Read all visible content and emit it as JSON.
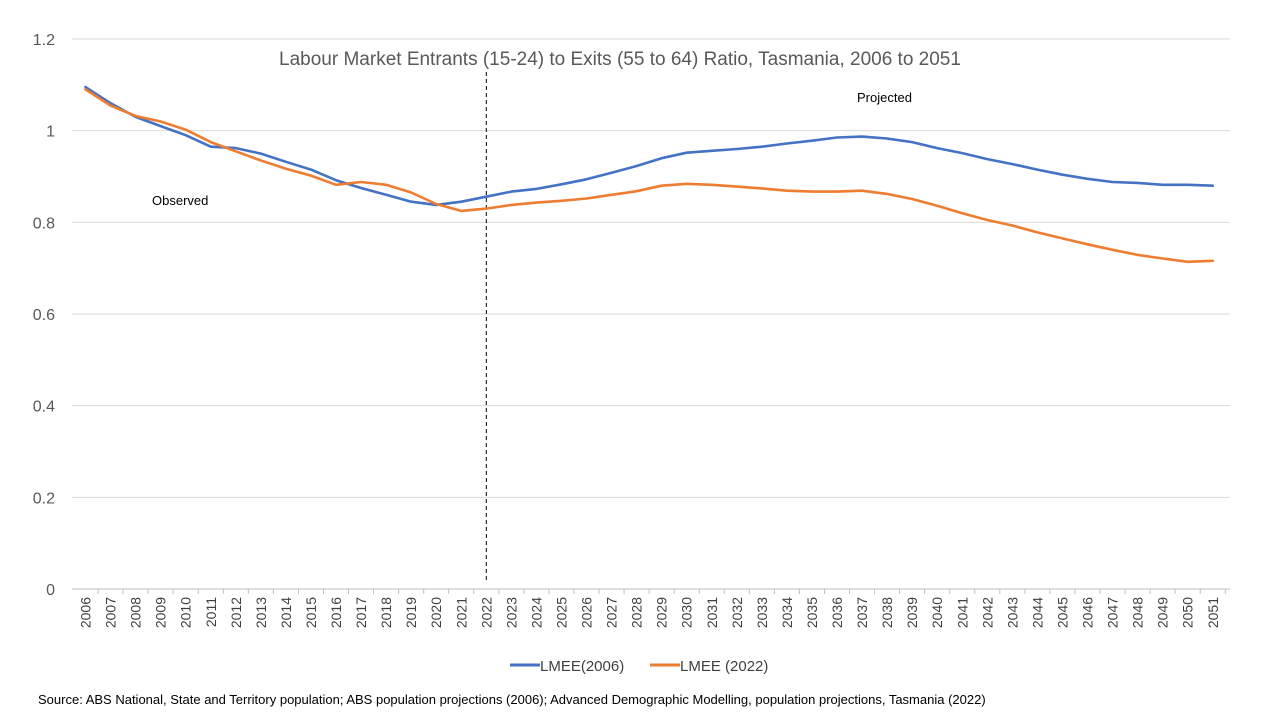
{
  "chart_data": {
    "type": "line",
    "title": "Labour Market Entrants (15-24) to Exits (55 to 64) Ratio, Tasmania, 2006 to 2051",
    "xlabel": "",
    "ylabel": "",
    "ylim": [
      0,
      1.2
    ],
    "yticks": [
      "0",
      "0.2",
      "0.4",
      "0.6",
      "0.8",
      "1",
      "1.2"
    ],
    "grid": true,
    "legend_position": "bottom",
    "x": [
      "2006",
      "2007",
      "2008",
      "2009",
      "2010",
      "2011",
      "2012",
      "2013",
      "2014",
      "2015",
      "2016",
      "2017",
      "2018",
      "2019",
      "2020",
      "2021",
      "2022",
      "2023",
      "2024",
      "2025",
      "2026",
      "2027",
      "2028",
      "2029",
      "2030",
      "2031",
      "2032",
      "2033",
      "2034",
      "2035",
      "2036",
      "2037",
      "2038",
      "2039",
      "2040",
      "2041",
      "2042",
      "2043",
      "2044",
      "2045",
      "2046",
      "2047",
      "2048",
      "2049",
      "2050",
      "2051"
    ],
    "series": [
      {
        "name": "LMEE(2006)",
        "color": "#4472C4",
        "values": [
          1.095,
          1.06,
          1.03,
          1.01,
          0.99,
          0.965,
          0.962,
          0.95,
          0.932,
          0.915,
          0.892,
          0.875,
          0.86,
          0.845,
          0.838,
          0.845,
          0.856,
          0.867,
          0.873,
          0.883,
          0.894,
          0.908,
          0.923,
          0.94,
          0.952,
          0.956,
          0.96,
          0.965,
          0.972,
          0.978,
          0.985,
          0.987,
          0.983,
          0.975,
          0.962,
          0.951,
          0.938,
          0.927,
          0.915,
          0.904,
          0.895,
          0.888,
          0.886,
          0.882,
          0.882,
          0.88
        ]
      },
      {
        "name": "LMEE (2022)",
        "color": "#ED7D31",
        "values": [
          1.09,
          1.055,
          1.032,
          1.02,
          1.002,
          0.975,
          0.955,
          0.935,
          0.917,
          0.902,
          0.882,
          0.888,
          0.882,
          0.865,
          0.84,
          0.825,
          0.83,
          0.838,
          0.843,
          0.847,
          0.852,
          0.86,
          0.868,
          0.88,
          0.884,
          0.882,
          0.878,
          0.874,
          0.869,
          0.867,
          0.867,
          0.869,
          0.862,
          0.851,
          0.836,
          0.82,
          0.805,
          0.793,
          0.778,
          0.765,
          0.752,
          0.74,
          0.729,
          0.721,
          0.714,
          0.716
        ]
      }
    ],
    "annotations": [
      {
        "text": "Observed"
      },
      {
        "text": "Projected"
      }
    ],
    "divider_at": "2022",
    "source": "Source: ABS National, State and Territory population; ABS population projections (2006); Advanced Demographic Modelling, population projections, Tasmania (2022)"
  }
}
